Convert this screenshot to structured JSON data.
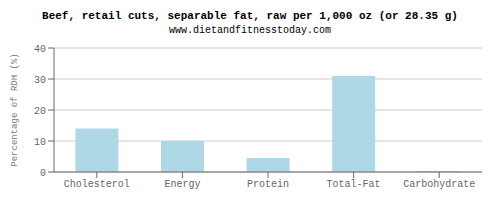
{
  "chart_data": {
    "type": "bar",
    "title": "Beef, retail cuts, separable fat, raw per 1,000 oz (or 28.35 g)",
    "subtitle": "www.dietandfitnesstoday.com",
    "categories": [
      "Cholesterol",
      "Energy",
      "Protein",
      "Total-Fat",
      "Carbohydrate"
    ],
    "values": [
      14,
      10,
      4.5,
      31,
      0.3
    ],
    "color": "#aed8e6",
    "ylabel": "Percentage of RDH (%)",
    "ylim": [
      0,
      40
    ],
    "yticks": [
      0,
      10,
      20,
      30,
      40
    ],
    "grid": true
  }
}
